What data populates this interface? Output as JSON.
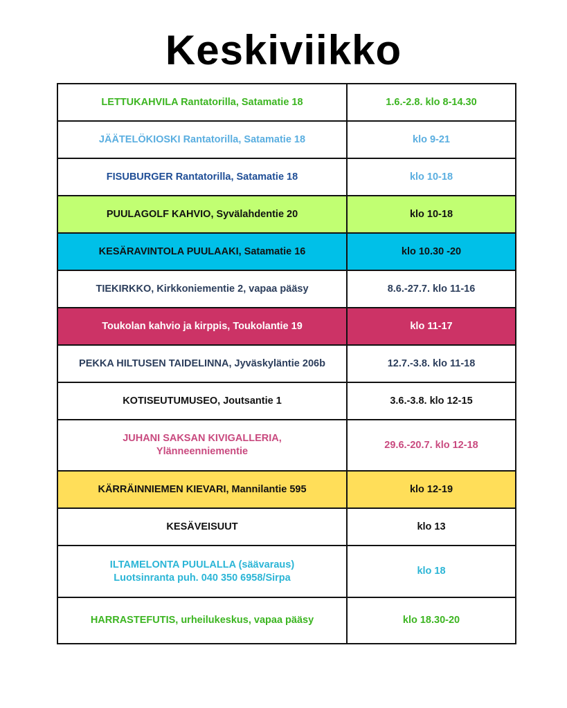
{
  "title": "Keskiviikko",
  "rows": [
    {
      "place": "LETTUKAHVILA Rantatorilla, Satamatie 18",
      "time": "1.6.-2.8. klo 8-14.30",
      "bg": "#ffffff",
      "place_color": "#3cb521",
      "time_color": "#3cb521"
    },
    {
      "place": "JÄÄTELÖKIOSKI Rantatorilla, Satamatie 18",
      "time": "klo 9-21",
      "bg": "#ffffff",
      "place_color": "#5aaee0",
      "time_color": "#5aaee0"
    },
    {
      "place": "FISUBURGER Rantatorilla, Satamatie 18",
      "time": "klo 10-18",
      "bg": "#ffffff",
      "place_color": "#1f4e96",
      "time_color": "#5aaee0"
    },
    {
      "place": "PUULAGOLF KAHVIO, Syvälahdentie  20",
      "time": "klo 10-18",
      "bg": "#c1ff72",
      "place_color": "#111111",
      "time_color": "#111111"
    },
    {
      "place": "KESÄRAVINTOLA PUULAAKI, Satamatie 16",
      "time": "klo 10.30 -20",
      "bg": "#00c0e8",
      "place_color": "#111111",
      "time_color": "#111111"
    },
    {
      "place": "TIEKIRKKO, Kirkkoniementie 2, vapaa pääsy",
      "time": "8.6.-27.7. klo 11-16",
      "bg": "#ffffff",
      "place_color": "#2c3e5c",
      "time_color": "#2c3e5c"
    },
    {
      "place": "Toukolan kahvio ja kirppis, Toukolantie 19",
      "time": "klo 11-17",
      "bg": "#cc3366",
      "place_color": "#ffffff",
      "time_color": "#ffffff"
    },
    {
      "place": "PEKKA HILTUSEN TAIDELINNA, Jyväskyläntie 206b",
      "time": "12.7.-3.8. klo 11-18",
      "bg": "#ffffff",
      "place_color": "#2c3e5c",
      "time_color": "#2c3e5c"
    },
    {
      "place": "KOTISEUTUMUSEO, Joutsantie 1",
      "time": "3.6.-3.8. klo 12-15",
      "bg": "#ffffff",
      "place_color": "#111111",
      "time_color": "#111111"
    },
    {
      "place": "JUHANI SAKSAN KIVIGALLERIA,\nYlänneenniementie",
      "time": "29.6.-20.7. klo 12-18",
      "bg": "#ffffff",
      "place_color": "#c94a7f",
      "time_color": "#c94a7f"
    },
    {
      "place": "KÄRRÄINNIEMEN KIEVARI, Mannilantie 595",
      "time": "klo 12-19",
      "bg": "#ffde59",
      "place_color": "#111111",
      "time_color": "#111111"
    },
    {
      "place": "KESÄVEISUUT",
      "time": "klo 13",
      "bg": "#ffffff",
      "place_color": "#111111",
      "time_color": "#111111"
    },
    {
      "place": "ILTAMELONTA PUULALLA (säävaraus)\nLuotsinranta puh. 040 350 6958/Sirpa",
      "time": "klo 18",
      "bg": "#ffffff",
      "place_color": "#2bb5d6",
      "time_color": "#2bb5d6"
    },
    {
      "place": "HARRASTEFUTIS, urheilukeskus, vapaa pääsy",
      "time": "klo 18.30-20",
      "bg": "#ffffff",
      "place_color": "#3cb521",
      "time_color": "#3cb521"
    }
  ]
}
